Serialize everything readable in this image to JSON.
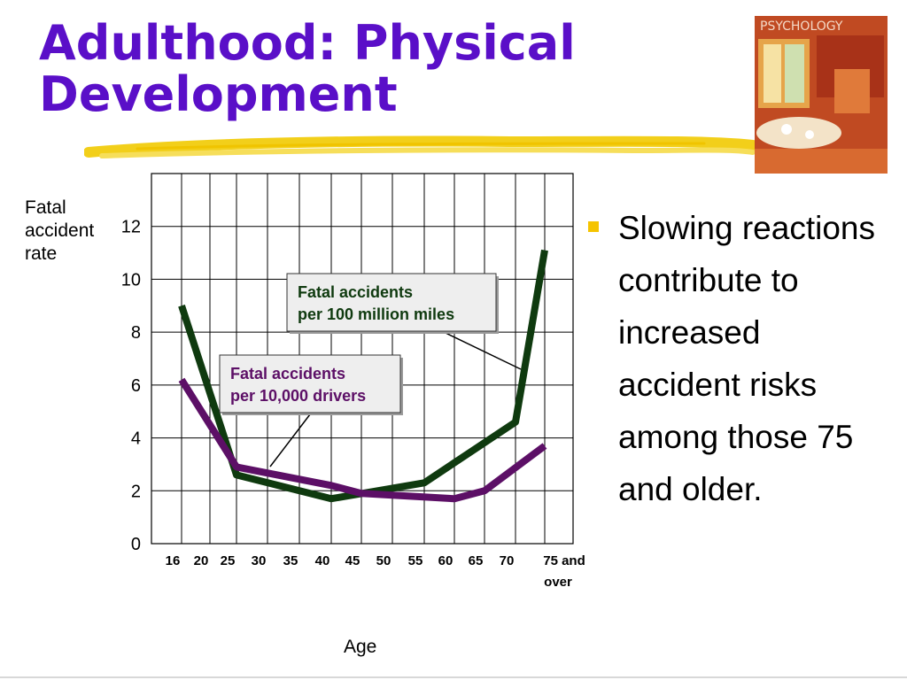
{
  "slide": {
    "title_line1": "Adulthood: Physical",
    "title_line2": "Development",
    "bullets": [
      "Slowing reactions contribute to increased accident risks among those 75 and older."
    ],
    "book_cover_text": "PSYCHOLOGY",
    "colors": {
      "title": "#5a0fc8",
      "accent_stroke": "#f2cf1a",
      "bullet": "#f5c400"
    }
  },
  "chart_data": {
    "type": "line",
    "ylabel": "Fatal accident rate",
    "xlabel": "Age",
    "categories": [
      "16",
      "20",
      "25",
      "30",
      "35",
      "40",
      "45",
      "50",
      "55",
      "60",
      "65",
      "70",
      "75 and over"
    ],
    "yticks": [
      "0",
      "2",
      "4",
      "6",
      "8",
      "10",
      "12"
    ],
    "ylim": [
      0,
      14
    ],
    "grid": true,
    "series": [
      {
        "name": "Fatal accidents per 100 million miles",
        "color": "#0f3a0f",
        "values": [
          9.0,
          null,
          2.6,
          null,
          null,
          1.7,
          null,
          null,
          2.3,
          null,
          null,
          4.6,
          11.1
        ]
      },
      {
        "name": "Fatal accidents per 10,000 drivers",
        "color": "#5c0f66",
        "values": [
          6.2,
          null,
          2.9,
          null,
          null,
          2.2,
          1.9,
          null,
          null,
          1.7,
          2.0,
          null,
          3.7
        ]
      }
    ],
    "annotations": [
      {
        "line1": "Fatal accidents",
        "line2": "per 100 million miles",
        "series": 0,
        "color": "#0f3a0f"
      },
      {
        "line1": "Fatal accidents",
        "line2": "per 10,000 drivers",
        "series": 1,
        "color": "#5c0f66"
      }
    ]
  }
}
